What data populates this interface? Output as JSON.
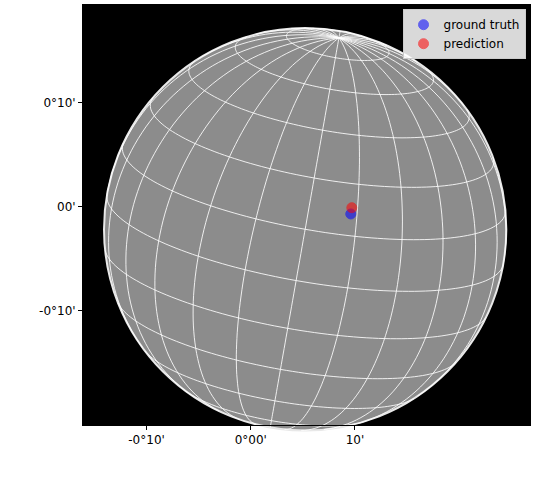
{
  "chart_data": {
    "type": "scatter",
    "xlim": [
      -16.1,
      26.8
    ],
    "ylim": [
      -21.0,
      19.4
    ],
    "xticks": [
      {
        "value": -10,
        "label": "-0°10'"
      },
      {
        "value": 0,
        "label": "0°00'"
      },
      {
        "value": 10,
        "label": "10'"
      }
    ],
    "yticks": [
      {
        "value": 10,
        "label": "0°10'"
      },
      {
        "value": 0,
        "label": "00'"
      },
      {
        "value": -10,
        "label": "-0°10'"
      }
    ],
    "series": [
      {
        "name": "ground truth",
        "color": "#0000ff",
        "marker": "circle",
        "x": [
          9.6
        ],
        "y": [
          -0.7
        ]
      },
      {
        "name": "prediction",
        "color": "#ff0000",
        "marker": "circle",
        "x": [
          9.7
        ],
        "y": [
          -0.1
        ]
      }
    ],
    "legend": "upper right",
    "grid": false
  }
}
